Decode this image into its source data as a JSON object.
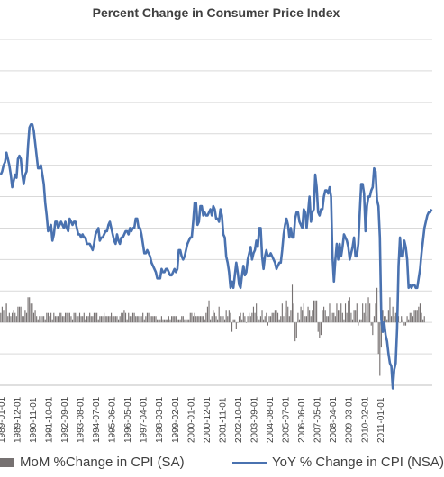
{
  "chart_data": {
    "type": "bar+line",
    "title": "Percent Change in Consumer Price Index",
    "x_tick_labels": [
      "1989-01-01",
      "1989-12-01",
      "1990-11-01",
      "1991-10-01",
      "1992-09-01",
      "1993-08-01",
      "1994-07-01",
      "1995-06-01",
      "1996-05-01",
      "1997-04-01",
      "1998-03-01",
      "1999-02-01",
      "2000-01-01",
      "2000-12-01",
      "2001-11-01",
      "2002-10-01",
      "2003-09-01",
      "2004-08-01",
      "2005-07-01",
      "2006-06-01",
      "2007-05-01",
      "2008-04-01",
      "2009-03-01",
      "2010-02-01",
      "2011-01-01"
    ],
    "ylim": [
      -2,
      9
    ],
    "grid": true,
    "legend_position": "bottom",
    "series": [
      {
        "name": "MoM %Change in CPI (SA)",
        "kind": "bar",
        "color": "#767171",
        "values": [
          0.3,
          0.5,
          0.4,
          0.6,
          0.6,
          0.2,
          0.3,
          0.2,
          0.3,
          0.4,
          0.3,
          0.2,
          0.5,
          0.5,
          0.5,
          0.2,
          0.2,
          0.4,
          0.3,
          0.8,
          0.8,
          0.6,
          0.6,
          0.3,
          0.4,
          0.2,
          0.1,
          0.2,
          0.1,
          0.2,
          0.2,
          0.1,
          0.3,
          0.3,
          0.2,
          0.3,
          0.1,
          0.3,
          0.2,
          0.2,
          0.2,
          0.3,
          0.3,
          0.2,
          0.2,
          0.3,
          0.3,
          0.3,
          0.3,
          0.2,
          0.1,
          0.3,
          0.3,
          0.2,
          0.2,
          0.3,
          0.2,
          0.2,
          0.3,
          0.1,
          0.2,
          0.2,
          0.3,
          0.2,
          0.2,
          0.3,
          0.3,
          0.3,
          0.1,
          0.2,
          0.2,
          0.2,
          0.3,
          0.2,
          0.2,
          0.2,
          0.2,
          0.3,
          0.2,
          0.2,
          0.2,
          0.2,
          0.1,
          0.2,
          0.3,
          0.3,
          0.4,
          0.3,
          0.1,
          0.3,
          0.2,
          0.2,
          0.3,
          0.3,
          0.2,
          0.2,
          0.2,
          0.1,
          0.2,
          0.3,
          0.1,
          0.2,
          0.3,
          0.3,
          0.2,
          0.2,
          0.2,
          0.2,
          0.2,
          0.1,
          0.1,
          0.1,
          0.2,
          0.1,
          0.1,
          0.1,
          0.1,
          0.2,
          0.1,
          0.2,
          0.2,
          0.2,
          0.2,
          0.1,
          0.1,
          0.1,
          0.2,
          0.2,
          0.1,
          0.1,
          0.1,
          0.1,
          0.3,
          0.3,
          0.2,
          0.3,
          0.2,
          0.2,
          0.2,
          0.2,
          0.2,
          0.2,
          0.1,
          0.3,
          0.5,
          0.7,
          0.1,
          0.2,
          0.4,
          0.3,
          0.2,
          0.1,
          0.5,
          0.2,
          0.2,
          0.2,
          0.1,
          0.4,
          0.2,
          0.4,
          0.3,
          -0.3,
          0.1,
          0.1,
          -0.2,
          0.0,
          0.2,
          0.3,
          0.1,
          0.3,
          0.2,
          0.0,
          0.2,
          0.3,
          0.2,
          0.3,
          0.5,
          0.3,
          0.6,
          0.2,
          0.1,
          0.2,
          0.4,
          0.1,
          0.2,
          0.3,
          -0.1,
          0.2,
          0.2,
          0.3,
          0.3,
          0.4,
          0.4,
          0.3,
          0.1,
          0.2,
          0.6,
          0.2,
          0.3,
          0.7,
          0.5,
          0.2,
          0.4,
          1.2,
          0.6,
          -0.6,
          -0.5,
          0.3,
          0.1,
          0.5,
          0.4,
          0.6,
          0.2,
          0.2,
          0.5,
          0.4,
          0.2,
          0.4,
          0.7,
          0.7,
          0.7,
          -0.3,
          -0.5,
          -0.4,
          0.4,
          0.5,
          0.4,
          0.2,
          0.2,
          0.6,
          0.1,
          0.3,
          0.3,
          0.2,
          0.6,
          0.4,
          0.4,
          0.6,
          0.3,
          0.1,
          0.6,
          0.3,
          0.7,
          0.8,
          0.3,
          0.1,
          0.4,
          0.4,
          0.6,
          -0.1,
          0.1,
          0.1,
          0.6,
          0.3,
          0.6,
          0.2,
          0.8,
          0.6,
          -0.1,
          -0.4,
          0.2,
          0.6,
          1.1,
          -1.0,
          -1.7,
          -0.8,
          0.4,
          0.2,
          0.2,
          0.1,
          0.4,
          0.8,
          0.2,
          0.5,
          0.2,
          0.3,
          0.3,
          0.2,
          0.0,
          0.2,
          0.1,
          -0.1,
          -0.1,
          0.2,
          0.1,
          0.3,
          0.3,
          0.2,
          0.4,
          0.4,
          0.4,
          0.5,
          0.6,
          0.3,
          0.1,
          0.2
        ],
        "unit": "percent"
      },
      {
        "name": "YoY % Change in CPI (NSA)",
        "kind": "line",
        "color": "#4a72b0",
        "values": [
          4.7,
          4.8,
          5.0,
          5.1,
          5.4,
          5.2,
          5.0,
          4.7,
          4.3,
          4.5,
          4.7,
          4.6,
          5.2,
          5.3,
          5.2,
          4.7,
          4.4,
          4.7,
          4.8,
          5.6,
          6.2,
          6.3,
          6.3,
          6.1,
          5.7,
          5.3,
          4.9,
          4.9,
          5.0,
          4.7,
          4.4,
          3.8,
          3.4,
          2.9,
          3.0,
          3.1,
          2.6,
          2.8,
          3.2,
          3.2,
          3.0,
          3.1,
          3.2,
          3.1,
          3.0,
          3.2,
          3.0,
          2.9,
          3.3,
          3.2,
          3.1,
          3.2,
          3.2,
          3.0,
          2.8,
          2.8,
          2.7,
          2.8,
          2.7,
          2.7,
          2.5,
          2.5,
          2.5,
          2.4,
          2.3,
          2.5,
          2.8,
          2.9,
          3.0,
          2.6,
          2.7,
          2.7,
          2.8,
          2.9,
          2.9,
          3.1,
          3.2,
          3.0,
          2.8,
          2.6,
          2.5,
          2.8,
          2.6,
          2.5,
          2.7,
          2.7,
          2.8,
          2.9,
          2.9,
          2.8,
          3.0,
          2.9,
          3.0,
          3.0,
          3.3,
          3.3,
          3.0,
          3.0,
          2.8,
          2.5,
          2.2,
          2.2,
          2.3,
          2.2,
          2.1,
          1.9,
          1.8,
          1.7,
          1.6,
          1.4,
          1.4,
          1.4,
          1.7,
          1.6,
          1.6,
          1.7,
          1.7,
          1.6,
          1.5,
          1.5,
          1.6,
          1.7,
          1.6,
          1.7,
          2.3,
          2.3,
          2.1,
          2.0,
          2.1,
          2.3,
          2.5,
          2.6,
          2.7,
          2.7,
          3.2,
          3.8,
          3.8,
          3.1,
          3.2,
          3.7,
          3.7,
          3.4,
          3.5,
          3.4,
          3.4,
          3.5,
          3.6,
          3.4,
          3.7,
          3.6,
          3.3,
          3.3,
          3.2,
          3.6,
          3.4,
          2.8,
          2.7,
          2.1,
          1.9,
          1.6,
          1.1,
          1.3,
          1.1,
          1.5,
          1.9,
          1.6,
          1.2,
          1.1,
          1.5,
          1.8,
          1.5,
          1.6,
          2.0,
          2.2,
          2.4,
          2.0,
          2.2,
          2.3,
          2.6,
          2.4,
          3.0,
          3.0,
          2.1,
          1.7,
          2.1,
          2.3,
          2.1,
          2.1,
          2.2,
          2.1,
          2.0,
          1.9,
          1.7,
          1.8,
          1.9,
          1.9,
          2.3,
          2.8,
          3.1,
          3.3,
          3.1,
          2.7,
          3.0,
          2.7,
          2.7,
          3.3,
          3.5,
          3.5,
          3.2,
          3.1,
          3.0,
          3.6,
          3.5,
          3.0,
          3.5,
          4.0,
          3.2,
          3.5,
          3.6,
          4.7,
          4.3,
          3.5,
          3.4,
          3.6,
          3.6,
          4.0,
          4.2,
          4.2,
          4.1,
          4.3,
          4.0,
          2.1,
          1.3,
          2.0,
          2.5,
          2.0,
          2.5,
          2.1,
          2.4,
          2.8,
          2.7,
          2.6,
          2.4,
          2.0,
          2.2,
          2.4,
          2.7,
          2.1,
          2.1,
          2.5,
          3.5,
          4.4,
          4.4,
          4.1,
          2.9,
          3.7,
          4.0,
          4.0,
          4.2,
          4.3,
          4.9,
          4.8,
          3.9,
          3.7,
          2.7,
          0.1,
          -0.3,
          0.0,
          -0.4,
          -0.6,
          -1.0,
          -1.3,
          -1.4,
          -2.1,
          -1.5,
          -1.3,
          -0.2,
          1.8,
          2.7,
          2.1,
          2.1,
          2.6,
          2.4,
          2.0,
          1.1,
          1.2,
          1.1,
          1.2,
          1.2,
          1.1,
          1.1,
          1.4,
          1.7,
          2.2,
          2.6,
          3.0,
          3.2,
          3.4,
          3.5,
          3.5,
          3.6
        ]
      }
    ]
  }
}
